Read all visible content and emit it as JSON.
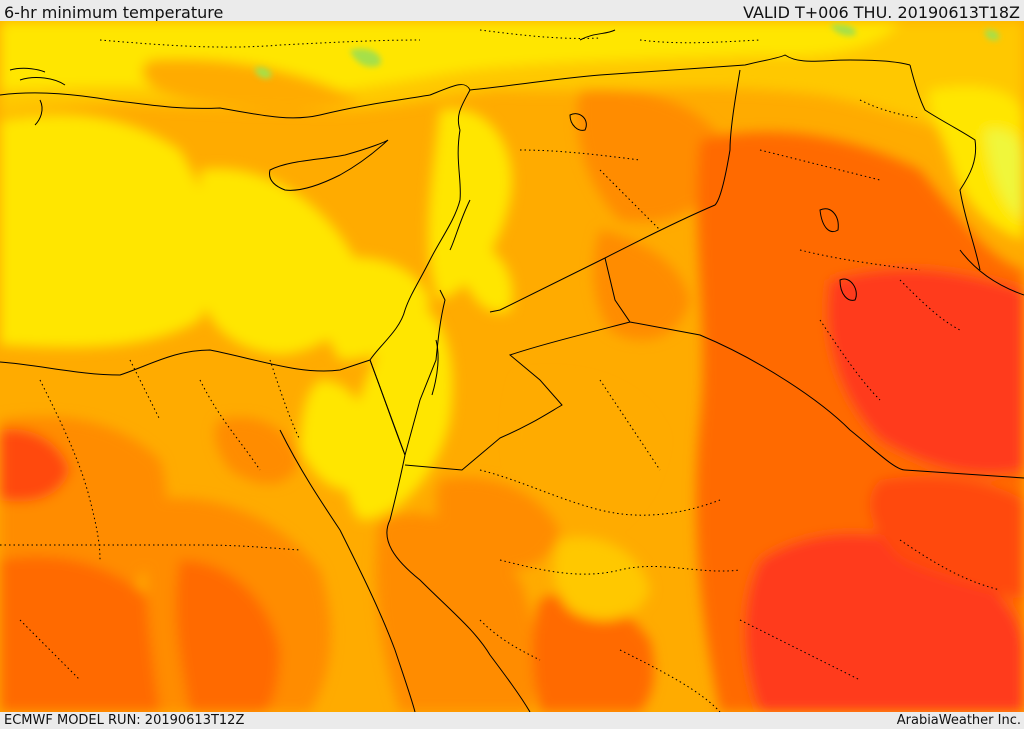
{
  "header": {
    "title": "6-hr minimum temperature",
    "valid": "VALID T+006 THU. 20190613T18Z"
  },
  "footer": {
    "model_run": "ECMWF MODEL RUN: 20190613T12Z",
    "brand": "ArabiaWeather Inc."
  },
  "map": {
    "region": "Eastern Mediterranean, Egypt, Levant, Iraq, Saudi Arabia",
    "colors": {
      "green": "#a6e04a",
      "light_yellow": "#f0f63a",
      "yellow": "#ffe600",
      "gold": "#ffc800",
      "orange_light": "#ffab00",
      "orange": "#ff8c00",
      "orange_dark": "#ff6a00",
      "red_orange": "#ff4a10",
      "red": "#ff3a1a"
    },
    "boundary_color": "#000000"
  }
}
